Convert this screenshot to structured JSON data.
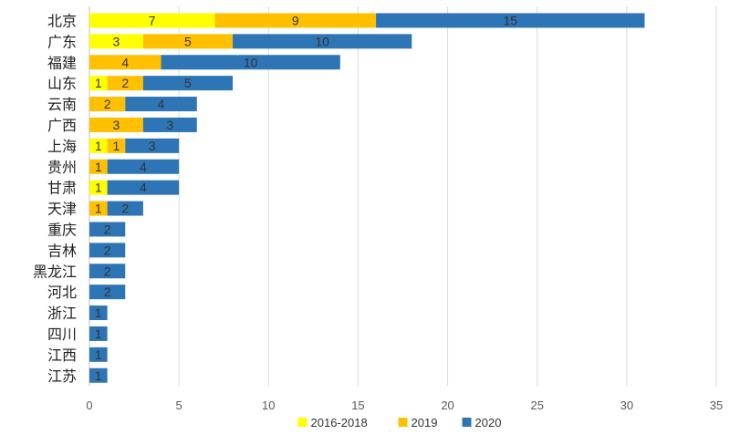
{
  "chart_data": {
    "type": "bar",
    "orientation": "horizontal",
    "stacked": true,
    "categories": [
      "北京",
      "广东",
      "福建",
      "山东",
      "云南",
      "广西",
      "上海",
      "贵州",
      "甘肃",
      "天津",
      "重庆",
      "吉林",
      "黑龙江",
      "河北",
      "浙江",
      "四川",
      "江西",
      "江苏"
    ],
    "series": [
      {
        "name": "2016-2018",
        "color": "#ffff00",
        "values": [
          7,
          3,
          0,
          1,
          0,
          0,
          1,
          0,
          1,
          0,
          0,
          0,
          0,
          0,
          0,
          0,
          0,
          0
        ]
      },
      {
        "name": "2019",
        "color": "#ffc000",
        "values": [
          9,
          5,
          4,
          2,
          2,
          3,
          1,
          1,
          0,
          1,
          0,
          0,
          0,
          0,
          0,
          0,
          0,
          0
        ]
      },
      {
        "name": "2020",
        "color": "#2e75b6",
        "values": [
          15,
          10,
          10,
          5,
          4,
          3,
          3,
          4,
          4,
          2,
          2,
          2,
          2,
          2,
          1,
          1,
          1,
          1
        ]
      }
    ],
    "xlim": [
      0,
      35
    ],
    "xticks": [
      0,
      5,
      10,
      15,
      20,
      25,
      30,
      35
    ],
    "grid": true,
    "legend": "bottom",
    "title": "",
    "xlabel": "",
    "ylabel": ""
  }
}
